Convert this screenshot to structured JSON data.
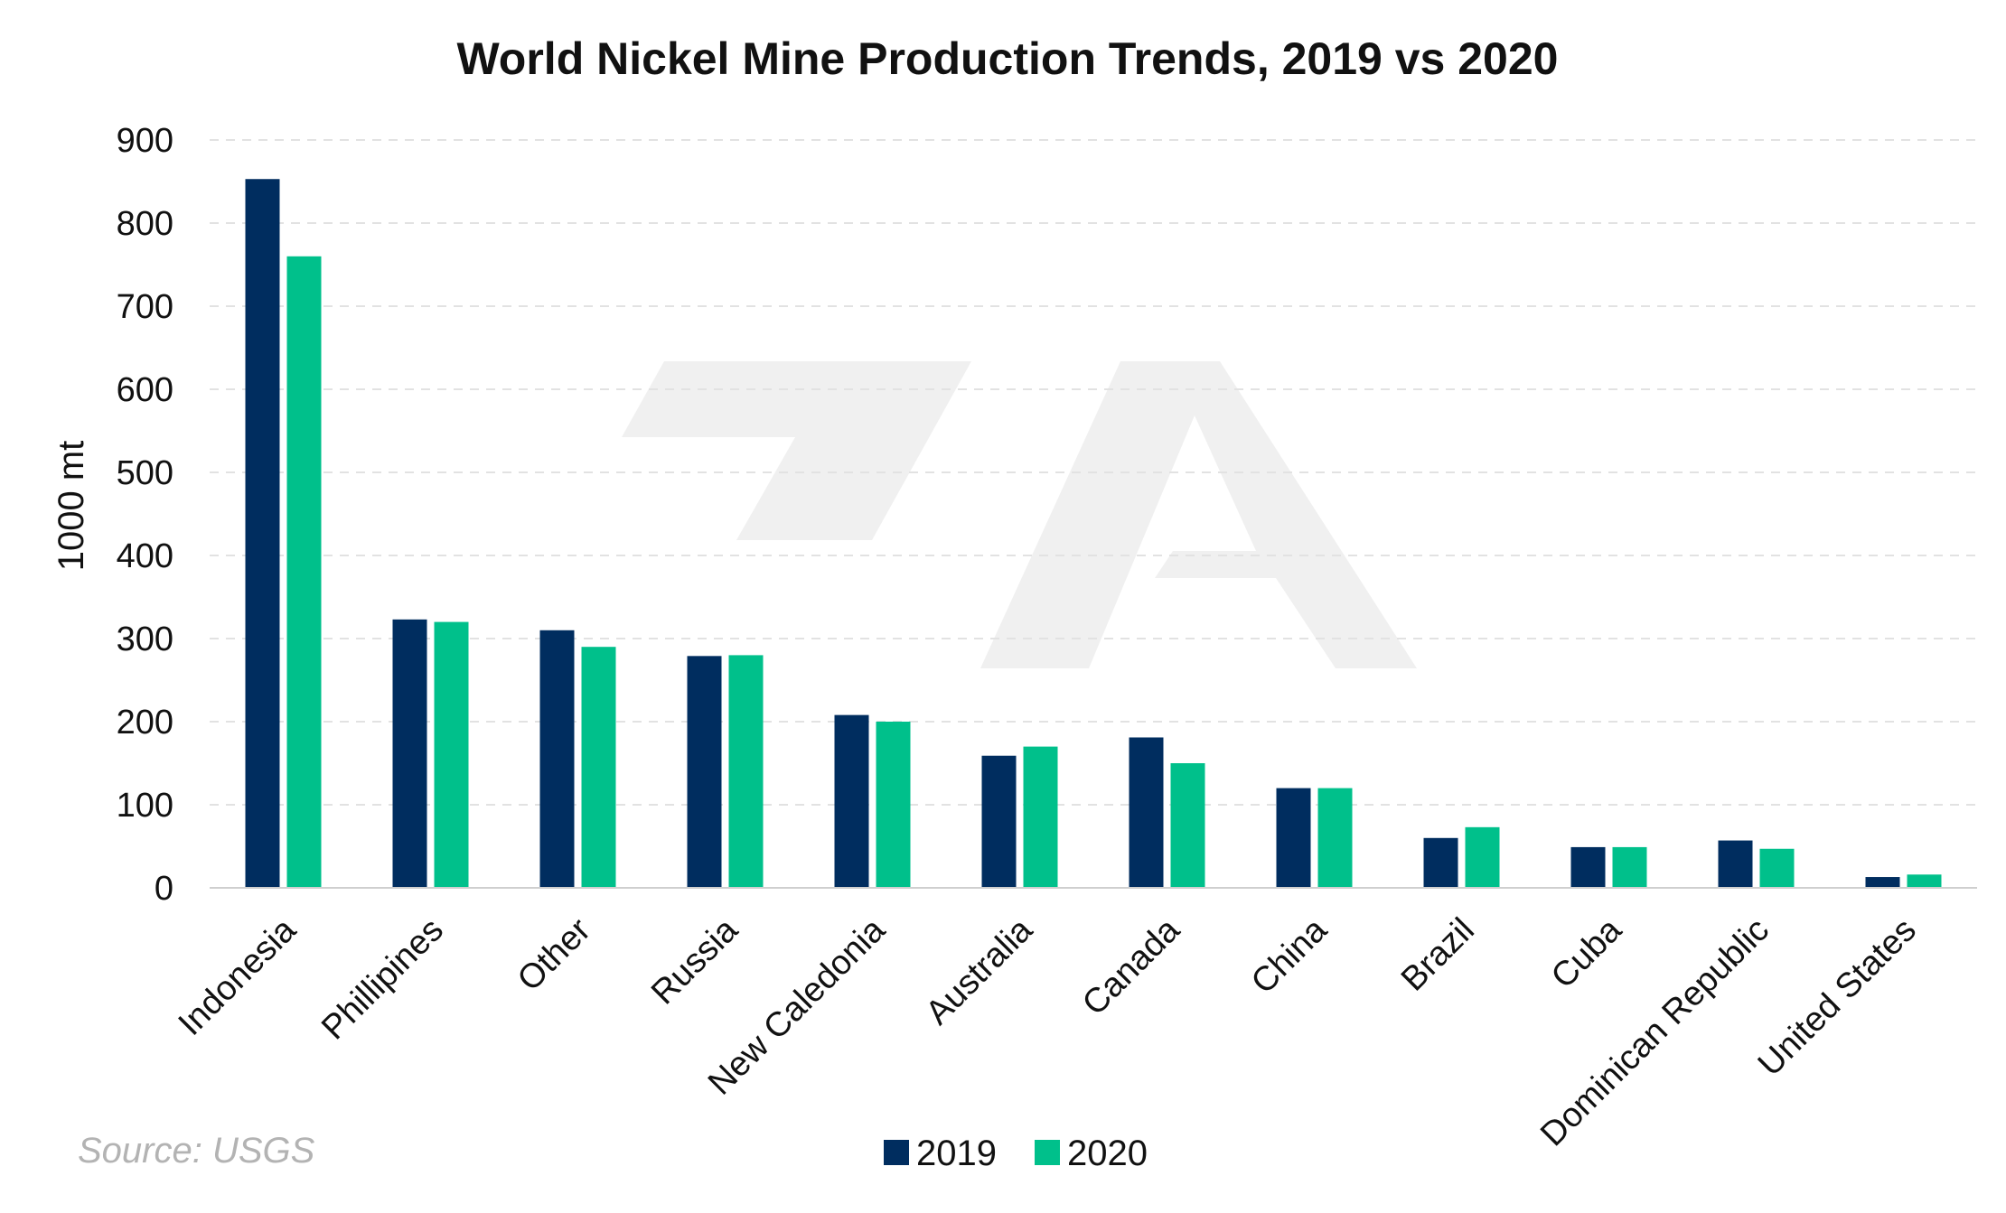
{
  "chart_data": {
    "type": "bar",
    "title": "World Nickel Mine Production Trends, 2019 vs 2020",
    "ylabel": "1000 mt",
    "xlabel": "",
    "ylim": [
      0,
      900
    ],
    "yticks": [
      0,
      100,
      200,
      300,
      400,
      500,
      600,
      700,
      800,
      900
    ],
    "grid": true,
    "legend_position": "bottom",
    "categories": [
      "Indonesia",
      "Phillipines",
      "Other",
      "Russia",
      "New Caledonia",
      "Australia",
      "Canada",
      "China",
      "Brazil",
      "Cuba",
      "Dominican Republic",
      "United States"
    ],
    "series": [
      {
        "name": "2019",
        "color": "#002d5f",
        "values": [
          853,
          323,
          310,
          279,
          208,
          159,
          181,
          120,
          60,
          49,
          57,
          13
        ]
      },
      {
        "name": "2020",
        "color": "#00c08b",
        "values": [
          760,
          320,
          290,
          280,
          200,
          170,
          150,
          120,
          73,
          49,
          47,
          16
        ]
      }
    ],
    "source": "Source: USGS"
  }
}
